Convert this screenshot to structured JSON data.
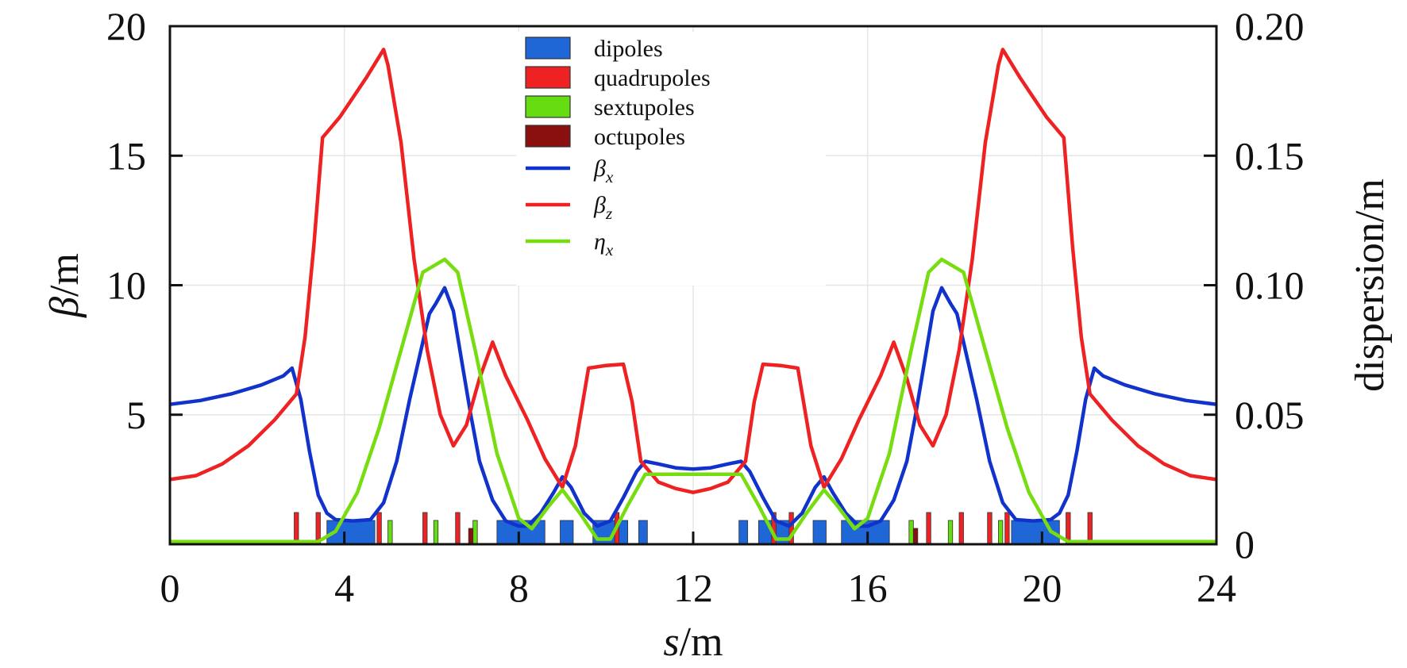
{
  "chart_data": {
    "type": "line",
    "x_axis": {
      "variable": "s",
      "unit": "/m",
      "range": [
        0,
        24
      ],
      "ticks": [
        0,
        4,
        8,
        12,
        16,
        20,
        24
      ],
      "tick_labels": [
        "0",
        "4",
        "8",
        "12",
        "16",
        "20",
        "24"
      ]
    },
    "y_axis_left": {
      "variable": "β",
      "unit": "/m",
      "range": [
        0,
        20
      ],
      "ticks": [
        5,
        10,
        15,
        20
      ],
      "tick_labels": [
        "5",
        "10",
        "15",
        "20"
      ]
    },
    "y_axis_right": {
      "label": "dispersion/m",
      "range": [
        0,
        0.2
      ],
      "ticks": [
        0,
        0.05,
        0.1,
        0.15,
        0.2
      ],
      "tick_labels": [
        "0",
        "0.05",
        "0.10",
        "0.15",
        "0.20"
      ]
    },
    "grid": true,
    "legend_position": "top-center",
    "legend": {
      "magnets": [
        {
          "label": "dipoles",
          "color": "#1f66d6"
        },
        {
          "label": "quadrupoles",
          "color": "#ee2222"
        },
        {
          "label": "sextupoles",
          "color": "#66dd11"
        },
        {
          "label": "octupoles",
          "color": "#8a0f0f"
        }
      ],
      "lines": [
        {
          "symbol": "β",
          "sub": "x",
          "color": "#1133cc"
        },
        {
          "symbol": "β",
          "sub": "z",
          "color": "#ee2222"
        },
        {
          "symbol": "η",
          "sub": "x",
          "color": "#77dd11"
        }
      ]
    },
    "series": [
      {
        "key": "beta_x",
        "axis": "left",
        "color": "#1133cc",
        "points": [
          [
            0,
            5.4
          ],
          [
            0.7,
            5.55
          ],
          [
            1.4,
            5.8
          ],
          [
            2.1,
            6.15
          ],
          [
            2.6,
            6.5
          ],
          [
            2.8,
            6.8
          ],
          [
            3.0,
            5.6
          ],
          [
            3.2,
            3.6
          ],
          [
            3.4,
            1.9
          ],
          [
            3.6,
            1.2
          ],
          [
            3.8,
            0.95
          ],
          [
            4.2,
            0.9
          ],
          [
            4.6,
            0.95
          ],
          [
            4.9,
            1.6
          ],
          [
            5.2,
            3.2
          ],
          [
            5.5,
            5.6
          ],
          [
            5.8,
            7.8
          ],
          [
            5.95,
            8.9
          ],
          [
            6.1,
            9.3
          ],
          [
            6.3,
            9.9
          ],
          [
            6.5,
            9.0
          ],
          [
            6.7,
            7.0
          ],
          [
            6.9,
            5.0
          ],
          [
            7.1,
            3.2
          ],
          [
            7.4,
            1.7
          ],
          [
            7.7,
            0.9
          ],
          [
            8.0,
            0.7
          ],
          [
            8.2,
            0.7
          ],
          [
            8.5,
            1.2
          ],
          [
            8.8,
            2.0
          ],
          [
            9.0,
            2.6
          ],
          [
            9.2,
            2.2
          ],
          [
            9.5,
            1.2
          ],
          [
            9.8,
            0.7
          ],
          [
            10.1,
            0.9
          ],
          [
            10.4,
            1.8
          ],
          [
            10.7,
            2.8
          ],
          [
            10.9,
            3.2
          ],
          [
            11.2,
            3.1
          ],
          [
            11.6,
            2.95
          ],
          [
            12.0,
            2.9
          ],
          [
            12.4,
            2.95
          ],
          [
            12.8,
            3.1
          ],
          [
            13.1,
            3.2
          ],
          [
            13.3,
            2.8
          ],
          [
            13.6,
            1.8
          ],
          [
            13.9,
            0.9
          ],
          [
            14.2,
            0.7
          ],
          [
            14.5,
            1.2
          ],
          [
            14.8,
            2.2
          ],
          [
            15.0,
            2.6
          ],
          [
            15.2,
            2.0
          ],
          [
            15.5,
            1.2
          ],
          [
            15.8,
            0.7
          ],
          [
            16.0,
            0.7
          ],
          [
            16.3,
            0.9
          ],
          [
            16.6,
            1.7
          ],
          [
            16.9,
            3.2
          ],
          [
            17.1,
            5.0
          ],
          [
            17.3,
            7.0
          ],
          [
            17.5,
            9.0
          ],
          [
            17.7,
            9.9
          ],
          [
            17.9,
            9.3
          ],
          [
            18.05,
            8.9
          ],
          [
            18.2,
            7.8
          ],
          [
            18.5,
            5.6
          ],
          [
            18.8,
            3.2
          ],
          [
            19.1,
            1.6
          ],
          [
            19.4,
            0.95
          ],
          [
            19.8,
            0.9
          ],
          [
            20.2,
            0.95
          ],
          [
            20.4,
            1.2
          ],
          [
            20.6,
            1.9
          ],
          [
            20.8,
            3.6
          ],
          [
            21.0,
            5.6
          ],
          [
            21.2,
            6.8
          ],
          [
            21.4,
            6.5
          ],
          [
            21.9,
            6.15
          ],
          [
            22.6,
            5.8
          ],
          [
            23.3,
            5.55
          ],
          [
            24,
            5.4
          ]
        ]
      },
      {
        "key": "beta_z",
        "axis": "left",
        "color": "#ee2222",
        "points": [
          [
            0,
            2.5
          ],
          [
            0.6,
            2.65
          ],
          [
            1.2,
            3.1
          ],
          [
            1.8,
            3.8
          ],
          [
            2.4,
            4.8
          ],
          [
            2.9,
            5.8
          ],
          [
            3.1,
            8.0
          ],
          [
            3.3,
            11.5
          ],
          [
            3.5,
            15.7
          ],
          [
            3.9,
            16.5
          ],
          [
            4.5,
            18.0
          ],
          [
            4.9,
            19.1
          ],
          [
            5.0,
            18.5
          ],
          [
            5.3,
            15.5
          ],
          [
            5.6,
            11.0
          ],
          [
            5.9,
            7.5
          ],
          [
            6.2,
            5.0
          ],
          [
            6.5,
            3.8
          ],
          [
            6.8,
            4.6
          ],
          [
            7.1,
            6.4
          ],
          [
            7.4,
            7.8
          ],
          [
            7.7,
            6.5
          ],
          [
            8.2,
            4.8
          ],
          [
            8.6,
            3.3
          ],
          [
            9.0,
            2.2
          ],
          [
            9.3,
            3.8
          ],
          [
            9.6,
            6.8
          ],
          [
            10.0,
            6.9
          ],
          [
            10.4,
            6.95
          ],
          [
            10.6,
            5.5
          ],
          [
            10.8,
            3.2
          ],
          [
            11.2,
            2.4
          ],
          [
            11.6,
            2.15
          ],
          [
            12.0,
            2.0
          ],
          [
            12.4,
            2.15
          ],
          [
            12.8,
            2.4
          ],
          [
            13.2,
            3.2
          ],
          [
            13.4,
            5.5
          ],
          [
            13.6,
            6.95
          ],
          [
            14.0,
            6.9
          ],
          [
            14.4,
            6.8
          ],
          [
            14.7,
            3.8
          ],
          [
            15.0,
            2.2
          ],
          [
            15.4,
            3.3
          ],
          [
            15.8,
            4.8
          ],
          [
            16.3,
            6.5
          ],
          [
            16.6,
            7.8
          ],
          [
            16.9,
            6.4
          ],
          [
            17.2,
            4.6
          ],
          [
            17.5,
            3.8
          ],
          [
            17.8,
            5.0
          ],
          [
            18.1,
            7.5
          ],
          [
            18.4,
            11.0
          ],
          [
            18.7,
            15.5
          ],
          [
            19.0,
            18.5
          ],
          [
            19.1,
            19.1
          ],
          [
            19.5,
            18.0
          ],
          [
            20.1,
            16.5
          ],
          [
            20.5,
            15.7
          ],
          [
            20.7,
            11.5
          ],
          [
            20.9,
            8.0
          ],
          [
            21.1,
            5.8
          ],
          [
            21.6,
            4.8
          ],
          [
            22.2,
            3.8
          ],
          [
            22.8,
            3.1
          ],
          [
            23.4,
            2.65
          ],
          [
            24,
            2.5
          ]
        ]
      },
      {
        "key": "eta_x",
        "axis": "right",
        "color": "#77dd11",
        "points": [
          [
            0,
            0.001
          ],
          [
            2.8,
            0.001
          ],
          [
            3.4,
            0.001
          ],
          [
            3.8,
            0.005
          ],
          [
            4.3,
            0.02
          ],
          [
            4.8,
            0.045
          ],
          [
            5.3,
            0.075
          ],
          [
            5.8,
            0.105
          ],
          [
            6.3,
            0.11
          ],
          [
            6.6,
            0.105
          ],
          [
            7.0,
            0.075
          ],
          [
            7.5,
            0.035
          ],
          [
            8.0,
            0.01
          ],
          [
            8.3,
            0.006
          ],
          [
            8.7,
            0.015
          ],
          [
            9.0,
            0.021
          ],
          [
            9.4,
            0.012
          ],
          [
            9.8,
            0.002
          ],
          [
            10.1,
            0.002
          ],
          [
            10.5,
            0.015
          ],
          [
            10.9,
            0.027
          ],
          [
            13.1,
            0.027
          ],
          [
            13.5,
            0.015
          ],
          [
            13.9,
            0.002
          ],
          [
            14.2,
            0.002
          ],
          [
            14.6,
            0.012
          ],
          [
            15.0,
            0.021
          ],
          [
            15.3,
            0.015
          ],
          [
            15.7,
            0.006
          ],
          [
            16.0,
            0.01
          ],
          [
            16.5,
            0.035
          ],
          [
            17.0,
            0.075
          ],
          [
            17.4,
            0.105
          ],
          [
            17.7,
            0.11
          ],
          [
            18.2,
            0.105
          ],
          [
            18.7,
            0.075
          ],
          [
            19.2,
            0.045
          ],
          [
            19.7,
            0.02
          ],
          [
            20.2,
            0.005
          ],
          [
            20.6,
            0.001
          ],
          [
            21.2,
            0.001
          ],
          [
            24,
            0.001
          ]
        ]
      }
    ],
    "magnets": {
      "dipoles": [
        [
          3.6,
          4.7
        ],
        [
          7.5,
          8.6
        ],
        [
          8.95,
          9.25
        ],
        [
          9.7,
          10.5
        ],
        [
          10.75,
          10.95
        ],
        [
          13.05,
          13.25
        ],
        [
          13.5,
          14.3
        ],
        [
          14.75,
          15.05
        ],
        [
          15.4,
          16.5
        ],
        [
          19.3,
          20.4
        ]
      ],
      "quadrupoles": [
        [
          2.85,
          2.95
        ],
        [
          3.35,
          3.45
        ],
        [
          4.75,
          4.85
        ],
        [
          5.8,
          5.9
        ],
        [
          6.55,
          6.65
        ],
        [
          10.2,
          10.3
        ],
        [
          13.8,
          13.9
        ],
        [
          14.2,
          14.3
        ],
        [
          17.35,
          17.45
        ],
        [
          18.1,
          18.2
        ],
        [
          18.75,
          18.85
        ],
        [
          19.15,
          19.25
        ],
        [
          20.55,
          20.65
        ],
        [
          21.05,
          21.15
        ]
      ],
      "sextupoles": [
        [
          6.05,
          6.15
        ],
        [
          6.95,
          7.05
        ],
        [
          16.95,
          17.05
        ],
        [
          17.85,
          17.95
        ],
        [
          19.0,
          19.1
        ],
        [
          5.0,
          5.1
        ]
      ],
      "octupoles": [
        [
          6.85,
          6.95
        ],
        [
          17.05,
          17.15
        ]
      ]
    }
  }
}
